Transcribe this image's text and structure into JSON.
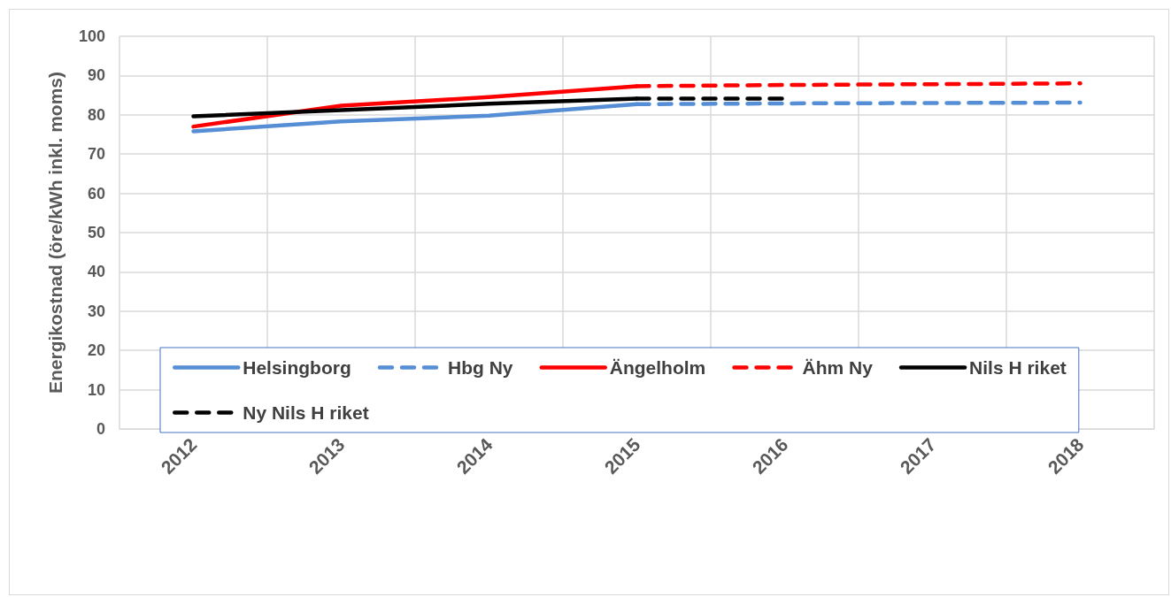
{
  "chart_data": {
    "type": "line",
    "ylabel": "Energikostnad (öre/kWh inkl. moms)",
    "categories": [
      "2012",
      "2013",
      "2014",
      "2015",
      "2016",
      "2017",
      "2018"
    ],
    "series": [
      {
        "name": "Helsingborg",
        "color": "#558ed5",
        "line_style": "solid",
        "values": [
          75.8,
          78.3,
          79.8,
          82.7,
          null,
          null,
          null
        ]
      },
      {
        "name": "Hbg Ny",
        "color": "#558ed5",
        "line_style": "dashed",
        "values": [
          null,
          null,
          null,
          82.7,
          82.9,
          83.0,
          83.1
        ]
      },
      {
        "name": "Ängelholm",
        "color": "#ff0000",
        "line_style": "solid",
        "values": [
          77.0,
          82.3,
          84.5,
          87.3,
          null,
          null,
          null
        ]
      },
      {
        "name": "Ähm Ny",
        "color": "#ff0000",
        "line_style": "dashed",
        "values": [
          null,
          null,
          null,
          87.3,
          87.6,
          87.8,
          88.0
        ]
      },
      {
        "name": "Nils H riket",
        "color": "#000000",
        "line_style": "solid",
        "values": [
          79.6,
          81.2,
          82.8,
          84.1,
          null,
          null,
          null
        ]
      },
      {
        "name": "Ny Nils H riket",
        "color": "#000000",
        "line_style": "dashed",
        "values": [
          null,
          null,
          null,
          84.1,
          84.1,
          null,
          null
        ]
      }
    ],
    "ylim": [
      0,
      100
    ],
    "yticks": [
      0,
      10,
      20,
      30,
      40,
      50,
      60,
      70,
      80,
      90,
      100
    ],
    "grid": true,
    "legend": "bottom",
    "marker": "none"
  }
}
